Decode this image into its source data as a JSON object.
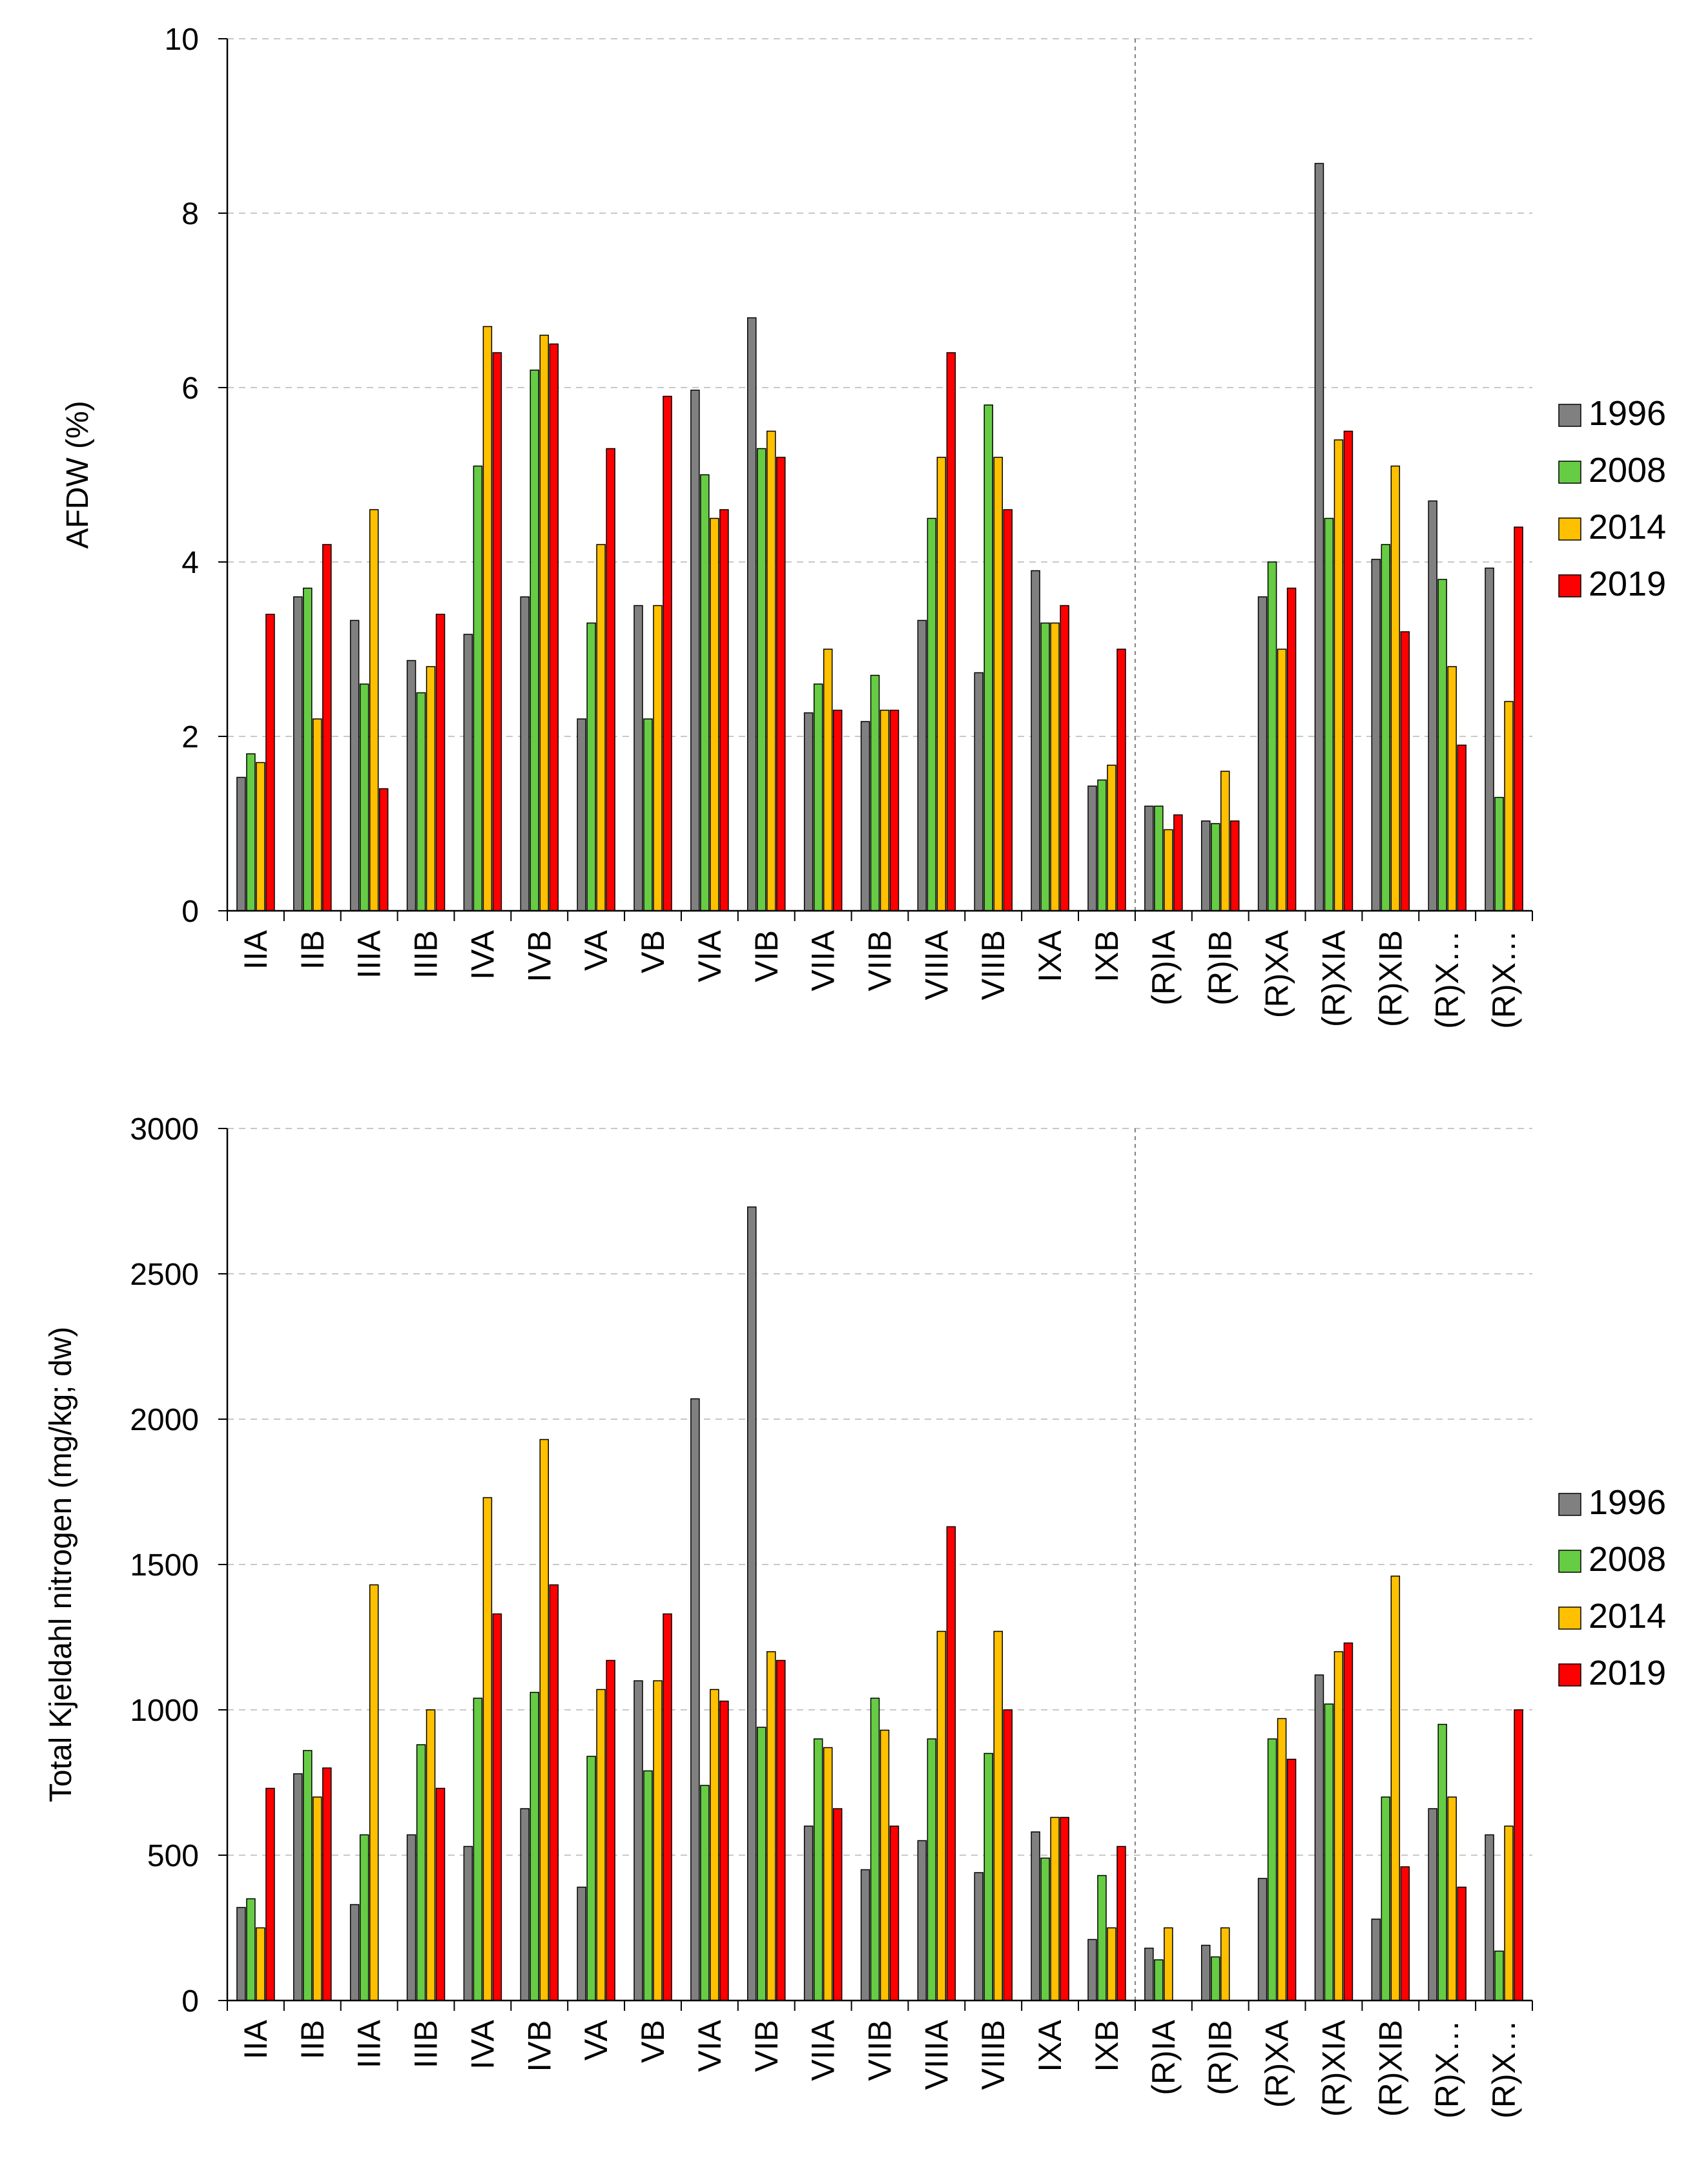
{
  "chart_data": [
    {
      "type": "bar",
      "title": "",
      "xlabel": "",
      "ylabel": "AFDW (%)",
      "ylim": [
        0,
        10
      ],
      "yticks": [
        0,
        2,
        4,
        6,
        8,
        10
      ],
      "grid": true,
      "legend": "right",
      "categories": [
        "IIA",
        "IIB",
        "IIIA",
        "IIIB",
        "IVA",
        "IVB",
        "VA",
        "VB",
        "VIA",
        "VIB",
        "VIIA",
        "VIIB",
        "VIIIA",
        "VIIIB",
        "IXA",
        "IXB",
        "(R)IA",
        "(R)IB",
        "(R)XA",
        "(R)XIA",
        "(R)XIB",
        "(R)X…",
        "(R)X…"
      ],
      "series": [
        {
          "name": "1996",
          "color": "#808080",
          "values": [
            1.53,
            3.6,
            3.33,
            2.87,
            3.17,
            3.6,
            2.2,
            3.5,
            5.97,
            6.8,
            2.27,
            2.17,
            3.33,
            2.73,
            3.9,
            1.43,
            1.2,
            1.03,
            3.6,
            8.57,
            4.03,
            4.7,
            3.93
          ]
        },
        {
          "name": "2008",
          "color": "#66CC44",
          "values": [
            1.8,
            3.7,
            2.6,
            2.5,
            5.1,
            6.2,
            3.3,
            2.2,
            5.0,
            5.3,
            2.6,
            2.7,
            4.5,
            5.8,
            3.3,
            1.5,
            1.2,
            1.0,
            4.0,
            4.5,
            4.2,
            3.8,
            1.3
          ]
        },
        {
          "name": "2014",
          "color": "#FFC000",
          "values": [
            1.7,
            2.2,
            4.6,
            2.8,
            6.7,
            6.6,
            4.2,
            3.5,
            4.5,
            5.5,
            3.0,
            2.3,
            5.2,
            5.2,
            3.3,
            1.67,
            0.93,
            1.6,
            3.0,
            5.4,
            5.1,
            2.8,
            2.4
          ]
        },
        {
          "name": "2019",
          "color": "#FF0000",
          "values": [
            3.4,
            4.2,
            1.4,
            3.4,
            6.4,
            6.5,
            5.3,
            5.9,
            4.6,
            5.2,
            2.3,
            2.3,
            6.4,
            4.6,
            3.5,
            3.0,
            1.1,
            1.03,
            3.7,
            5.5,
            3.2,
            1.9,
            4.4
          ]
        }
      ]
    },
    {
      "type": "bar",
      "title": "",
      "xlabel": "",
      "ylabel": "Total Kjeldahl nitrogen  (mg/kg;  dw)",
      "ylim": [
        0,
        3000
      ],
      "yticks": [
        0,
        500,
        1000,
        1500,
        2000,
        2500,
        3000
      ],
      "grid": true,
      "legend": "right",
      "categories": [
        "IIA",
        "IIB",
        "IIIA",
        "IIIB",
        "IVA",
        "IVB",
        "VA",
        "VB",
        "VIA",
        "VIB",
        "VIIA",
        "VIIB",
        "VIIIA",
        "VIIIB",
        "IXA",
        "IXB",
        "(R)IA",
        "(R)IB",
        "(R)XA",
        "(R)XIA",
        "(R)XIB",
        "(R)X…",
        "(R)X…"
      ],
      "series": [
        {
          "name": "1996",
          "color": "#808080",
          "values": [
            320,
            780,
            330,
            570,
            530,
            660,
            390,
            1100,
            2070,
            2730,
            600,
            450,
            550,
            440,
            580,
            210,
            180,
            190,
            420,
            1120,
            280,
            660,
            570
          ]
        },
        {
          "name": "2008",
          "color": "#66CC44",
          "values": [
            350,
            860,
            570,
            880,
            1040,
            1060,
            840,
            790,
            740,
            940,
            900,
            1040,
            900,
            850,
            490,
            430,
            140,
            150,
            900,
            1020,
            700,
            950,
            170
          ]
        },
        {
          "name": "2014",
          "color": "#FFC000",
          "values": [
            250,
            700,
            1430,
            1000,
            1730,
            1930,
            1070,
            1100,
            1070,
            1200,
            870,
            930,
            1270,
            1270,
            630,
            250,
            250,
            250,
            970,
            1200,
            1460,
            700,
            600
          ]
        },
        {
          "name": "2019",
          "color": "#FF0000",
          "values": [
            730,
            800,
            0,
            730,
            1330,
            1430,
            1170,
            1330,
            1030,
            1170,
            660,
            600,
            1630,
            1000,
            630,
            530,
            0,
            0,
            830,
            1230,
            460,
            390,
            1000
          ]
        }
      ]
    }
  ]
}
